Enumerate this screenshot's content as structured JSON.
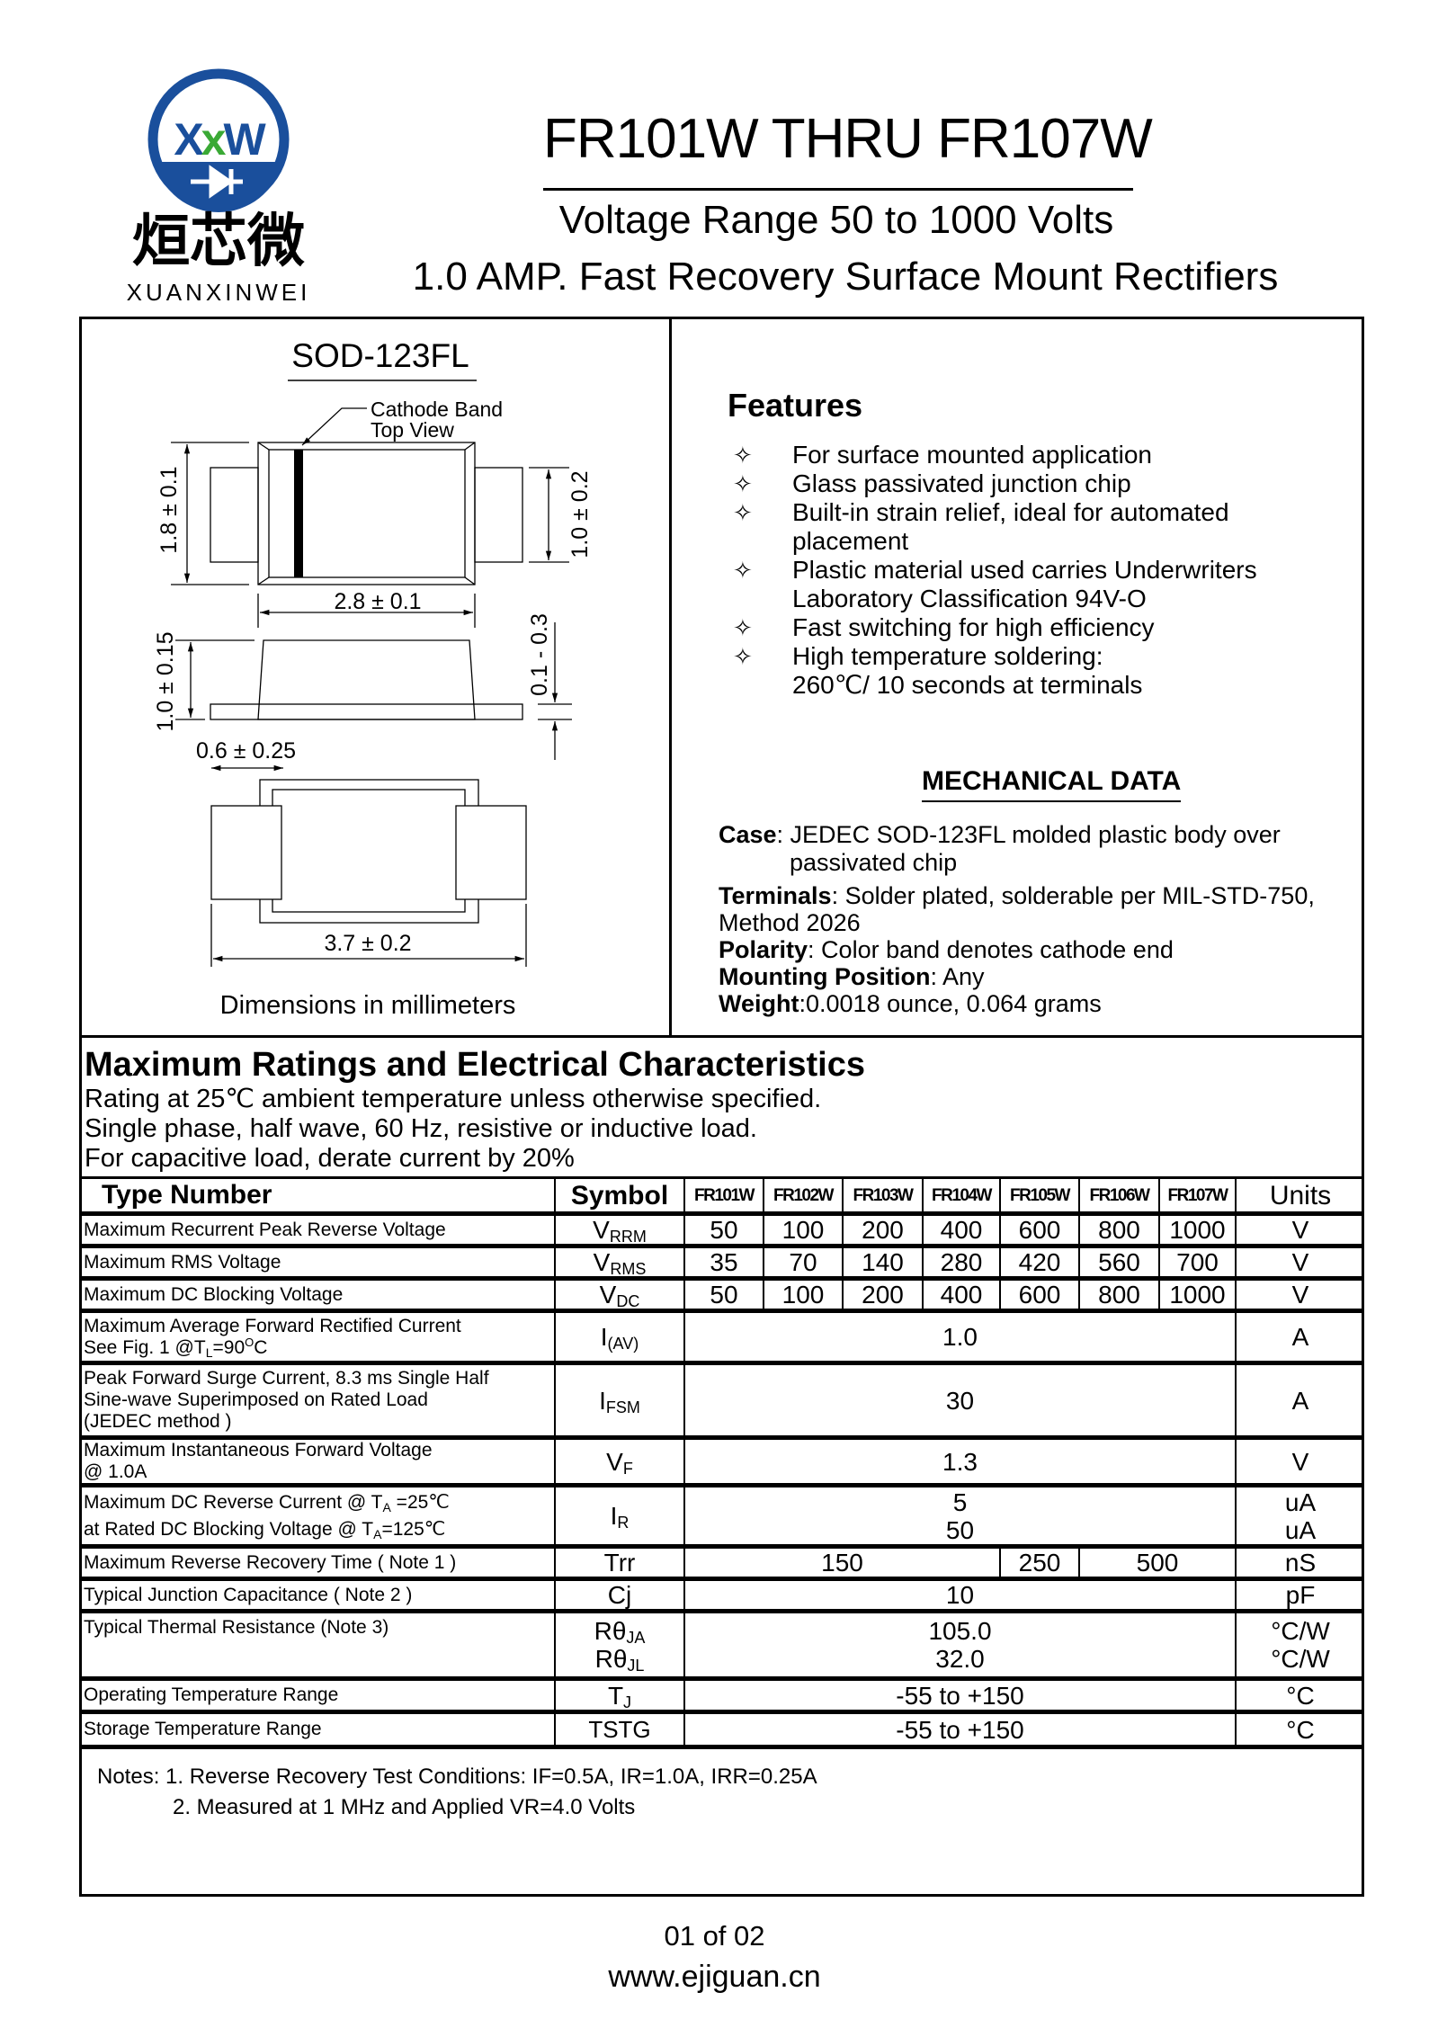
{
  "logo": {
    "monogram": "XXW",
    "chinese": "烜芯微",
    "latin": "XUANXINWEI",
    "colors": {
      "blue": "#1a4f9c",
      "green": "#3aa935"
    }
  },
  "header": {
    "title": "FR101W THRU FR107W",
    "voltage_range": "Voltage Range 50 to 1000 Volts",
    "description": "1.0 AMP. Fast Recovery Surface Mount Rectifiers"
  },
  "drawing": {
    "package": "SOD-123FL",
    "cathode_label_1": "Cathode Band",
    "cathode_label_2": "Top View",
    "dims": {
      "height": "1.8 ± 0.1",
      "tab_width": "1.0 ± 0.2",
      "length": "2.8 ± 0.1",
      "thickness": "1.0 ± 0.15",
      "lead_thk": "0.1 - 0.3",
      "lead_len": "0.6 ± 0.25",
      "overall": "3.7 ± 0.2"
    },
    "caption": "Dimensions in millimeters"
  },
  "features": {
    "heading": "Features",
    "bullet": "✧",
    "items": [
      {
        "lines": [
          "For surface mounted application"
        ]
      },
      {
        "lines": [
          "Glass passivated junction chip"
        ]
      },
      {
        "lines": [
          "Built-in strain relief, ideal for automated",
          "placement"
        ]
      },
      {
        "lines": [
          "Plastic material used carries Underwriters",
          "Laboratory Classification 94V-O"
        ]
      },
      {
        "lines": [
          "Fast switching for high efficiency"
        ]
      },
      {
        "lines": [
          "High temperature soldering:",
          " 260℃/ 10 seconds at terminals"
        ]
      }
    ]
  },
  "mechanical": {
    "heading": "MECHANICAL DATA",
    "case_label": "Case",
    "case_value": ": JEDEC SOD-123FL molded plastic body over",
    "case_value2": "passivated chip",
    "terminals_label": "Terminals",
    "terminals_value": ": Solder plated, solderable per MIL-STD-750,",
    "terminals_value2": "Method 2026",
    "polarity_label": "Polarity",
    "polarity_value": ": Color band denotes cathode end",
    "mounting_label": "Mounting Position",
    "mounting_value": ": Any",
    "weight_label": "Weight",
    "weight_value": ":0.0018 ounce, 0.064 grams"
  },
  "ratings": {
    "heading": "Maximum Ratings and Electrical Characteristics",
    "lines": [
      "Rating at 25℃ ambient temperature unless otherwise specified.",
      "Single phase, half wave, 60 Hz, resistive or inductive load.",
      "For capacitive load, derate current by 20%"
    ],
    "columns": {
      "type": "Type Number",
      "symbol": "Symbol",
      "parts": [
        "FR101W",
        "FR102W",
        "FR103W",
        "FR104W",
        "FR105W",
        "FR106W",
        "FR107W"
      ],
      "units": "Units"
    },
    "rows": {
      "vrrm": {
        "label": "Maximum Recurrent Peak Reverse Voltage",
        "sym": "V",
        "sub": "RRM",
        "values": [
          "50",
          "100",
          "200",
          "400",
          "600",
          "800",
          "1000"
        ],
        "unit": "V"
      },
      "vrms": {
        "label": "Maximum RMS Voltage",
        "sym": "V",
        "sub": "RMS",
        "values": [
          "35",
          "70",
          "140",
          "280",
          "420",
          "560",
          "700"
        ],
        "unit": "V"
      },
      "vdc": {
        "label": "Maximum DC Blocking Voltage",
        "sym": "V",
        "sub": "DC",
        "values": [
          "50",
          "100",
          "200",
          "400",
          "600",
          "800",
          "1000"
        ],
        "unit": "V"
      },
      "iav": {
        "label1": "Maximum Average Forward Rectified Current",
        "label2a": "See Fig. 1 @T",
        "label2sub": "L",
        "label2b": "=90",
        "label2sup": "O",
        "label2c": "C",
        "sym": "I",
        "sub": "(AV)",
        "value": "1.0",
        "unit": "A"
      },
      "ifsm": {
        "label1": "Peak Forward Surge Current, 8.3 ms Single Half",
        "label2": "Sine-wave Superimposed on Rated Load",
        "label3": "(JEDEC method )",
        "sym": "I",
        "sub": "FSM",
        "value": "30",
        "unit": "A"
      },
      "vf": {
        "label1": "Maximum Instantaneous Forward Voltage",
        "label2": "@ 1.0A",
        "sym": "V",
        "sub": "F",
        "value": "1.3",
        "unit": "V"
      },
      "ir": {
        "label1a": "Maximum DC Reverse Current @ T",
        "label1sub": "A",
        "label1b": " =25℃",
        "label2a": "at Rated DC Blocking Voltage @ T",
        "label2sub": "A",
        "label2b": "=125℃",
        "sym": "I",
        "sub": "R",
        "value1": "5",
        "value2": "50",
        "unit1": "uA",
        "unit2": "uA"
      },
      "trr": {
        "label": "Maximum Reverse Recovery Time ( Note 1 )",
        "sym": "Trr",
        "v1": "150",
        "v2": "250",
        "v3": "500",
        "unit": "nS"
      },
      "cj": {
        "label": "Typical Junction Capacitance ( Note 2 )",
        "sym": "Cj",
        "value": "10",
        "unit": "pF"
      },
      "rth": {
        "label": "Typical Thermal Resistance (Note 3)",
        "sym1": "Rθ",
        "sub1": "JA",
        "sym2": "Rθ",
        "sub2": "JL",
        "value1": "105.0",
        "value2": "32.0",
        "unit1": "°C/W",
        "unit2": "°C/W"
      },
      "tj": {
        "label": "Operating Temperature Range",
        "sym": "T",
        "sub": "J",
        "value": "-55 to +150",
        "unit": "°C"
      },
      "tstg": {
        "label": "Storage Temperature Range",
        "sym": "TSTG",
        "value": "-55 to +150",
        "unit": "°C"
      }
    }
  },
  "notes": {
    "line1": "Notes: 1. Reverse Recovery Test Conditions: IF=0.5A, IR=1.0A, IRR=0.25A",
    "line2": "2. Measured at 1 MHz and Applied VR=4.0 Volts"
  },
  "footer": {
    "page": "01 of 02",
    "url": "www.ejiguan.cn"
  }
}
